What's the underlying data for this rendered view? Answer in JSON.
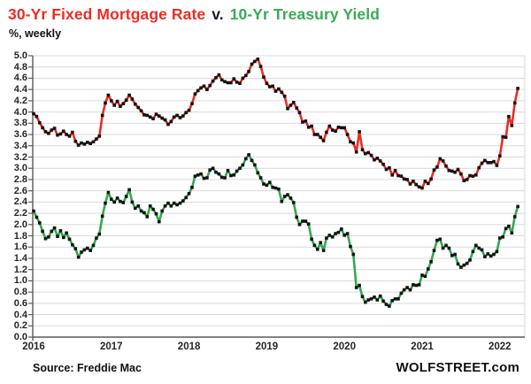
{
  "header": {
    "title_red": "30-Yr Fixed Mortgage Rate",
    "title_sep": "v.",
    "title_green": "10-Yr Treasury Yield",
    "subtitle": "%, weekly"
  },
  "footer": {
    "source": "Source: Freddie Mac",
    "brand": "WOLFSTREET.com"
  },
  "chart_data": {
    "type": "line",
    "title": "30-Yr Fixed Mortgage Rate v. 10-Yr Treasury Yield",
    "subtitle": "%, weekly",
    "xlabel": "",
    "ylabel": "%",
    "x_unit": "fractional_year",
    "x_start": 2016.0,
    "points_per_year": 26,
    "xlim": [
      2016.0,
      2022.33
    ],
    "ylim": [
      0.0,
      5.0
    ],
    "y_tick_step": 0.2,
    "x_ticks": [
      2016,
      2017,
      2018,
      2019,
      2020,
      2021,
      2022
    ],
    "grid": "horizontal",
    "legend_position": "in-title",
    "marker": "black-square",
    "colors": {
      "mortgage_line": "#ee2c23",
      "treasury_line": "#33a94f",
      "marker": "#141414",
      "grid": "#d9d9d9",
      "axis": "#595959",
      "title_red": "#ee2c23",
      "title_green": "#3aaa54"
    },
    "series": [
      {
        "name": "30-Yr Fixed Mortgage Rate",
        "color_key": "mortgage_line",
        "values": [
          3.97,
          3.92,
          3.81,
          3.72,
          3.65,
          3.62,
          3.68,
          3.71,
          3.59,
          3.61,
          3.66,
          3.6,
          3.57,
          3.64,
          3.48,
          3.41,
          3.45,
          3.43,
          3.46,
          3.44,
          3.47,
          3.52,
          3.57,
          3.94,
          4.16,
          4.3,
          4.2,
          4.12,
          4.19,
          4.1,
          4.15,
          4.21,
          4.3,
          4.23,
          4.14,
          4.08,
          4.02,
          3.95,
          3.94,
          3.91,
          3.88,
          3.96,
          3.93,
          3.89,
          3.86,
          3.78,
          3.83,
          3.91,
          3.94,
          3.9,
          3.93,
          3.99,
          4.03,
          4.15,
          4.32,
          4.38,
          4.43,
          4.46,
          4.4,
          4.47,
          4.55,
          4.61,
          4.66,
          4.57,
          4.54,
          4.52,
          4.52,
          4.59,
          4.53,
          4.51,
          4.6,
          4.65,
          4.72,
          4.85,
          4.9,
          4.94,
          4.81,
          4.62,
          4.51,
          4.45,
          4.46,
          4.37,
          4.41,
          4.35,
          4.28,
          4.06,
          4.12,
          4.17,
          4.07,
          3.99,
          3.82,
          3.84,
          3.73,
          3.75,
          3.6,
          3.6,
          3.55,
          3.49,
          3.64,
          3.75,
          3.68,
          3.66,
          3.73,
          3.72,
          3.72,
          3.6,
          3.47,
          3.45,
          3.29,
          3.65,
          3.33,
          3.26,
          3.28,
          3.23,
          3.15,
          3.18,
          3.13,
          3.07,
          2.98,
          3.01,
          2.88,
          2.96,
          2.87,
          2.86,
          2.81,
          2.8,
          2.72,
          2.77,
          2.71,
          2.67,
          2.65,
          2.77,
          2.73,
          2.81,
          2.97,
          3.02,
          3.17,
          3.13,
          3.04,
          2.96,
          2.95,
          2.93,
          2.98,
          2.9,
          2.78,
          2.8,
          2.87,
          2.86,
          2.88,
          3.01,
          3.09,
          3.14,
          3.1,
          3.1,
          3.12,
          3.05,
          3.22,
          3.56,
          3.55,
          3.92,
          3.76,
          4.16,
          4.42
        ]
      },
      {
        "name": "10-Yr Treasury Yield",
        "color_key": "treasury_line",
        "values": [
          2.24,
          2.13,
          2.03,
          1.88,
          1.75,
          1.78,
          1.88,
          1.94,
          1.79,
          1.89,
          1.77,
          1.85,
          1.74,
          1.64,
          1.57,
          1.42,
          1.51,
          1.55,
          1.58,
          1.54,
          1.63,
          1.76,
          1.83,
          2.15,
          2.38,
          2.57,
          2.45,
          2.4,
          2.47,
          2.41,
          2.39,
          2.5,
          2.62,
          2.4,
          2.29,
          2.33,
          2.24,
          2.21,
          2.14,
          2.33,
          2.27,
          2.19,
          2.05,
          2.24,
          2.33,
          2.38,
          2.33,
          2.38,
          2.35,
          2.38,
          2.42,
          2.48,
          2.55,
          2.66,
          2.86,
          2.88,
          2.9,
          2.82,
          2.83,
          2.97,
          3.0,
          2.93,
          2.9,
          2.84,
          2.83,
          2.96,
          2.87,
          2.88,
          2.95,
          3.0,
          3.06,
          3.17,
          3.24,
          3.14,
          3.06,
          2.92,
          2.83,
          2.72,
          2.7,
          2.75,
          2.66,
          2.65,
          2.63,
          2.41,
          2.5,
          2.53,
          2.47,
          2.39,
          2.13,
          2.0,
          2.06,
          2.06,
          2.01,
          1.74,
          1.63,
          1.56,
          1.68,
          1.54,
          1.76,
          1.81,
          1.78,
          1.84,
          1.86,
          1.92,
          1.81,
          1.84,
          1.61,
          1.47,
          0.88,
          0.92,
          0.72,
          0.62,
          0.66,
          0.68,
          0.71,
          0.66,
          0.73,
          0.64,
          0.58,
          0.55,
          0.65,
          0.68,
          0.68,
          0.78,
          0.84,
          0.88,
          0.84,
          0.93,
          0.92,
          0.93,
          1.1,
          1.08,
          1.21,
          1.34,
          1.54,
          1.72,
          1.74,
          1.58,
          1.63,
          1.58,
          1.45,
          1.47,
          1.3,
          1.24,
          1.28,
          1.31,
          1.37,
          1.52,
          1.63,
          1.58,
          1.55,
          1.43,
          1.48,
          1.44,
          1.47,
          1.52,
          1.76,
          1.78,
          1.93,
          1.97,
          1.85,
          2.14,
          2.32
        ]
      }
    ]
  }
}
